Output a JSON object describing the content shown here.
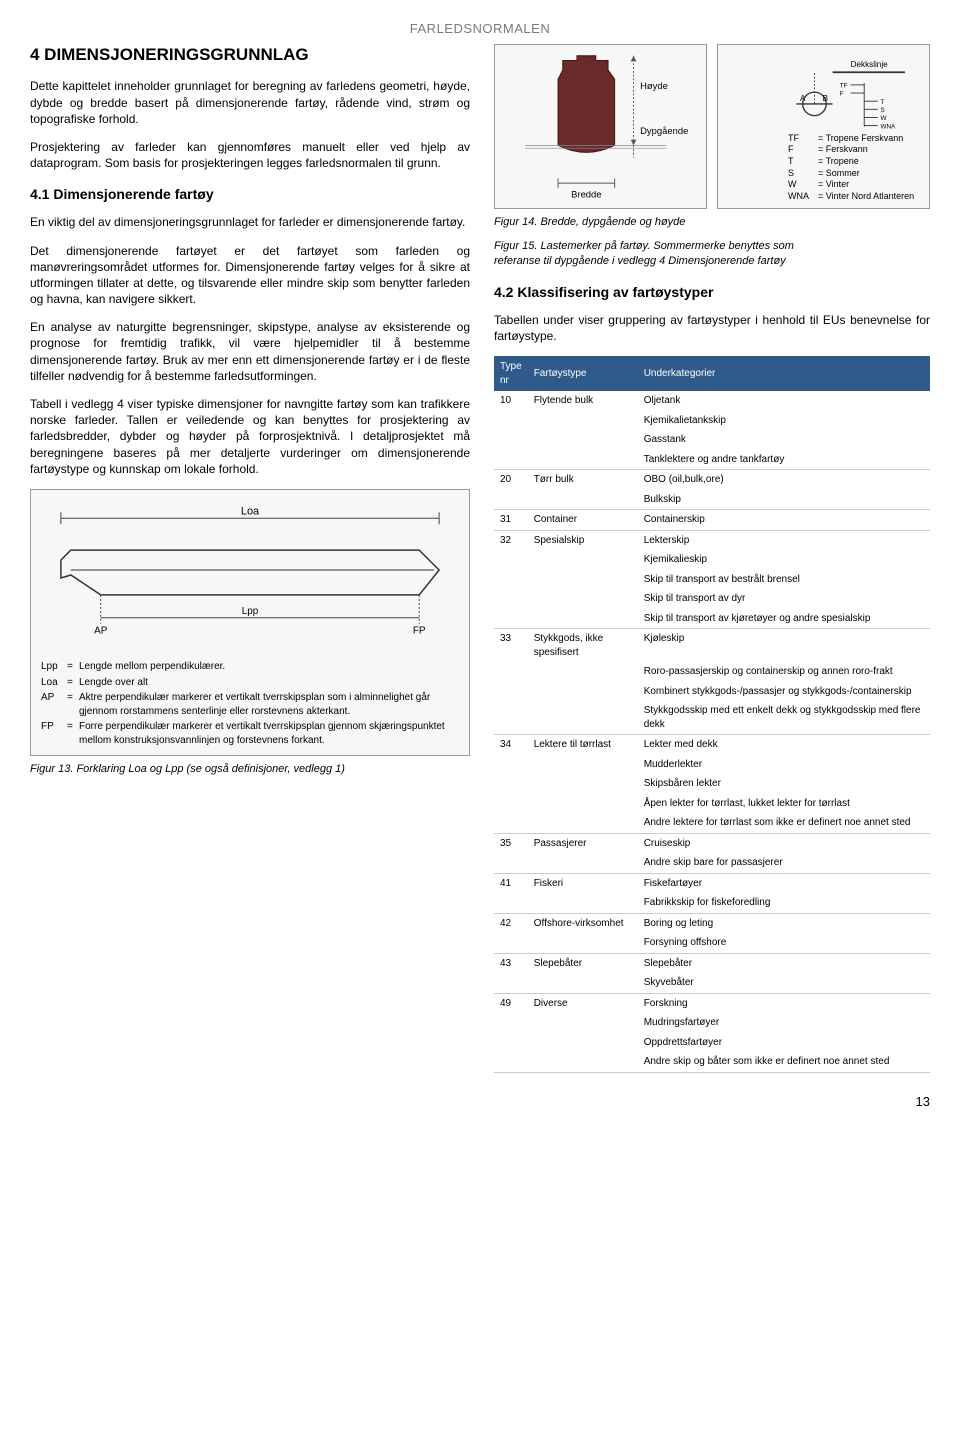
{
  "header_label": "FARLEDSNORMALEN",
  "section_title": "4 DIMENSJONERINGSGRUNNLAG",
  "para1": "Dette kapittelet inneholder grunnlaget for beregning av farledens geometri, høyde, dybde og bredde basert på dimensjonerende fartøy, rådende vind, strøm og topografiske forhold.",
  "para2": "Prosjektering av farleder kan gjennomføres manuelt eller ved hjelp av dataprogram. Som basis for prosjekteringen legges farledsnormalen til grunn.",
  "sub41": "4.1 Dimensjonerende fartøy",
  "para3": "En viktig del av dimensjoneringsgrunnlaget for farleder er dimensjonerende fartøy.",
  "para4": "Det dimensjonerende fartøyet er det fartøyet som farleden og manøvreringsområdet utformes for. Dimensjonerende fartøy velges for å sikre at utformingen tillater at dette, og tilsvarende eller mindre skip som benytter farleden og havna, kan navigere sikkert.",
  "para5": "En analyse av naturgitte begrensninger, skipstype, analyse av eksisterende og prognose for fremtidig trafikk, vil være hjelpemidler til å bestemme dimensjonerende fartøy. Bruk av mer enn ett dimensjonerende fartøy er i de fleste tilfeller nødvendig for å bestemme farledsutformingen.",
  "para6": "Tabell i vedlegg 4 viser typiske dimensjoner for navngitte fartøy som kan trafikkere norske farleder. Tallen er veiledende og kan benyttes for prosjektering av farledsbredder, dybder og høyder på forprosjektnivå. I detaljprosjektet må beregningene baseres på mer detaljerte vurderinger om dimensjonerende fartøystype og kunnskap om lokale forhold.",
  "fig13": {
    "loa": "Loa",
    "lpp": "Lpp",
    "ap": "AP",
    "fp": "FP",
    "defs": [
      {
        "k": "Lpp",
        "v": "Lengde mellom perpendikulærer."
      },
      {
        "k": "Loa",
        "v": "Lengde over alt"
      },
      {
        "k": "AP",
        "v": "Aktre perpendikulær markerer et vertikalt tverrskipsplan som i alminnelighet går gjennom rorstammens senterlinje eller rorstevnens akterkant."
      },
      {
        "k": "FP",
        "v": "Forre perpendikulær markerer et vertikalt tverrskipsplan gjennom skjæringspunktet mellom konstruksjonsvannlinjen og forstevnens forkant."
      }
    ],
    "caption": "Figur 13. Forklaring Loa og Lpp (se også definisjoner, vedlegg 1)"
  },
  "fig14": {
    "bredde": "Bredde",
    "hoyde": "Høyde",
    "dypg": "Dypgående",
    "caption": "Figur 14. Bredde, dypgående og høyde"
  },
  "fig15": {
    "dekkslinje": "Dekkslinje",
    "a": "A",
    "b": "B",
    "marks": [
      "TF",
      "F",
      "T",
      "S",
      "W",
      "WNA"
    ],
    "legend": [
      {
        "k": "TF",
        "v": "= Tropene Ferskvann"
      },
      {
        "k": "F",
        "v": "= Ferskvann"
      },
      {
        "k": "T",
        "v": "= Tropene"
      },
      {
        "k": "S",
        "v": "= Sommer"
      },
      {
        "k": "W",
        "v": "= Vinter"
      },
      {
        "k": "WNA",
        "v": "= Vinter Nord Atlanteren"
      }
    ],
    "caption": "Figur 15. Lastemerker på fartøy. Sommermerke benyttes som",
    "caption2": "referanse til dypgående i vedlegg 4 Dimensjonerende fartøy"
  },
  "sub42": "4.2 Klassifisering av fartøystyper",
  "para7": "Tabellen under viser gruppering av fartøystyper i henhold til EUs benevnelse for fartøystype.",
  "table": {
    "headers": [
      "Type nr",
      "Fartøystype",
      "Underkategorier"
    ],
    "rows": [
      {
        "nr": "10",
        "type": "Flytende bulk",
        "subs": [
          "Oljetank",
          "Kjemikalietankskip",
          "Gasstank",
          "Tanklektere og andre tankfartøy"
        ]
      },
      {
        "nr": "20",
        "type": "Tørr bulk",
        "subs": [
          "OBO (oil,bulk,ore)",
          "Bulkskip"
        ]
      },
      {
        "nr": "31",
        "type": "Container",
        "subs": [
          "Containerskip"
        ]
      },
      {
        "nr": "32",
        "type": "Spesialskip",
        "subs": [
          "Lekterskip",
          "Kjemikalieskip",
          "Skip til transport av bestrålt brensel",
          "Skip til transport av dyr",
          "Skip til transport av kjøretøyer og andre spesialskip"
        ]
      },
      {
        "nr": "33",
        "type": "Stykkgods, ikke spesifisert",
        "subs": [
          "Kjøleskip",
          "Roro-passasjerskip og containerskip og annen roro-frakt",
          "Kombinert stykkgods-/passasjer og stykkgods-/containerskip",
          "Stykkgodsskip med ett enkelt dekk og stykkgodsskip med flere dekk"
        ]
      },
      {
        "nr": "34",
        "type": "Lektere til tørrlast",
        "subs": [
          "Lekter med dekk",
          "Mudderlekter",
          "Skipsbåren lekter",
          "Åpen lekter for tørrlast, lukket lekter for tørrlast",
          "Andre lektere for tørrlast som ikke er definert noe annet sted"
        ]
      },
      {
        "nr": "35",
        "type": "Passasjerer",
        "subs": [
          "Cruiseskip",
          "Andre skip bare for passasjerer"
        ]
      },
      {
        "nr": "41",
        "type": "Fiskeri",
        "subs": [
          "Fiskefartøyer",
          "Fabrikkskip for fiskeforedling"
        ]
      },
      {
        "nr": "42",
        "type": "Offshore-virksomhet",
        "subs": [
          "Boring og leting",
          "Forsyning offshore"
        ]
      },
      {
        "nr": "43",
        "type": "Slepebåter",
        "subs": [
          "Slepebåter",
          "Skyvebåter"
        ]
      },
      {
        "nr": "49",
        "type": "Diverse",
        "subs": [
          "Forskning",
          "Mudringsfartøyer",
          "Oppdrettsfartøyer",
          "Andre skip og båter som ikke er definert noe annet sted"
        ]
      }
    ]
  },
  "page_num": "13",
  "colors": {
    "hull": "#6b2a2a",
    "tableHeader": "#2f5a8a"
  }
}
